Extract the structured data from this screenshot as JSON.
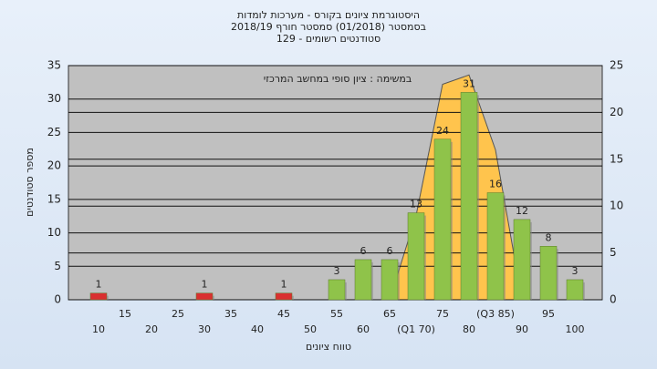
{
  "chart_data": {
    "type": "bar",
    "title_lines": [
      "היסטוגרמת ציונים בקורס - מערכות לומדות",
      "בסמסטר  (01/2018)  סמסטר חורף 2018/19",
      "סטודנטים רשומים - 129"
    ],
    "subtitle": "במשימה : ציון סופי במחשב המרכזי",
    "x_label": "טווח ציונים",
    "y_label": "מספר סטודנטים",
    "categories": [
      "10",
      "15",
      "20",
      "25",
      "30",
      "35",
      "40",
      "45",
      "50",
      "55",
      "60",
      "65",
      "(Q1 70)",
      "75",
      "80",
      "(Q3 85)",
      "90",
      "95",
      "100"
    ],
    "values": [
      1,
      null,
      null,
      null,
      1,
      null,
      null,
      1,
      null,
      3,
      6,
      6,
      13,
      24,
      31,
      16,
      12,
      8,
      3
    ],
    "colors": [
      "#d93030",
      null,
      null,
      null,
      "#d93030",
      null,
      null,
      "#d93030",
      null,
      "#8fc34a",
      "#8fc34a",
      "#8fc34a",
      "#8fc34a",
      "#8fc34a",
      "#8fc34a",
      "#8fc34a",
      "#8fc34a",
      "#8fc34a",
      "#8fc34a"
    ],
    "curve": {
      "axis": "y2",
      "color": "#ffc44d",
      "values": [
        null,
        null,
        null,
        null,
        null,
        null,
        null,
        null,
        null,
        null,
        null,
        0,
        9,
        23,
        24,
        16,
        0,
        null,
        null
      ]
    },
    "ylim": [
      0,
      35
    ],
    "yticks": [
      0,
      5,
      10,
      15,
      20,
      25,
      30,
      35
    ],
    "y2lim": [
      0,
      25
    ],
    "y2ticks": [
      0,
      5,
      10,
      15,
      20,
      25
    ],
    "grid": true
  }
}
